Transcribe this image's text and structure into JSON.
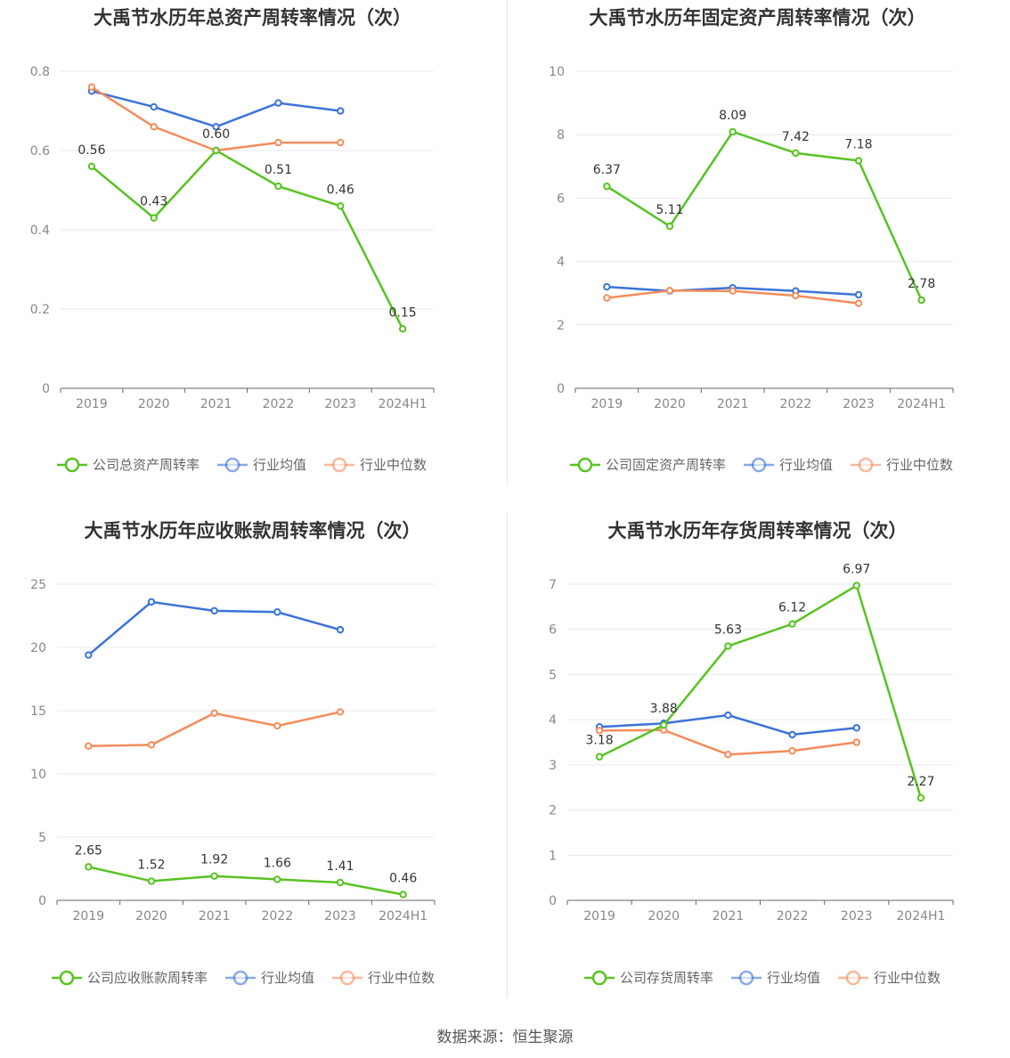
{
  "source": "数据来源：恒生聚源",
  "colors": {
    "company": "#58c322",
    "avg": "#3b73d9",
    "median": "#f48c5c",
    "grid": "#e6e9f2",
    "axis": "#666666"
  },
  "chart_data": [
    {
      "type": "line",
      "title": "大禹节水历年总资产周转率情况（次）",
      "categories": [
        "2019",
        "2020",
        "2021",
        "2022",
        "2023",
        "2024H1"
      ],
      "ylim": [
        0,
        0.8
      ],
      "yticks": [
        "0",
        "0.2",
        "0.4",
        "0.6",
        "0.8"
      ],
      "grid": true,
      "legend": "bottom",
      "series": [
        {
          "name": "公司总资产周转率",
          "key": "company",
          "values": [
            0.56,
            0.43,
            0.6,
            0.51,
            0.46,
            0.15
          ],
          "labels": [
            "0.56",
            "0.43",
            "0.60",
            "0.51",
            "0.46",
            "0.15"
          ]
        },
        {
          "name": "行业均值",
          "key": "avg",
          "values": [
            0.75,
            0.71,
            0.66,
            0.72,
            0.7,
            null
          ]
        },
        {
          "name": "行业中位数",
          "key": "median",
          "values": [
            0.76,
            0.66,
            0.6,
            0.62,
            0.62,
            null
          ]
        }
      ]
    },
    {
      "type": "line",
      "title": "大禹节水历年固定资产周转率情况（次）",
      "categories": [
        "2019",
        "2020",
        "2021",
        "2022",
        "2023",
        "2024H1"
      ],
      "ylim": [
        0,
        10
      ],
      "yticks": [
        "0",
        "2",
        "4",
        "6",
        "8",
        "10"
      ],
      "grid": true,
      "legend": "bottom",
      "series": [
        {
          "name": "公司固定资产周转率",
          "key": "company",
          "values": [
            6.37,
            5.11,
            8.09,
            7.42,
            7.18,
            2.78
          ],
          "labels": [
            "6.37",
            "5.11",
            "8.09",
            "7.42",
            "7.18",
            "2.78"
          ]
        },
        {
          "name": "行业均值",
          "key": "avg",
          "values": [
            3.2,
            3.07,
            3.17,
            3.07,
            2.95,
            null
          ]
        },
        {
          "name": "行业中位数",
          "key": "median",
          "values": [
            2.85,
            3.08,
            3.07,
            2.92,
            2.68,
            null
          ]
        }
      ]
    },
    {
      "type": "line",
      "title": "大禹节水历年应收账款周转率情况（次）",
      "categories": [
        "2019",
        "2020",
        "2021",
        "2022",
        "2023",
        "2024H1"
      ],
      "ylim": [
        0,
        25
      ],
      "yticks": [
        "0",
        "5",
        "10",
        "15",
        "20",
        "25"
      ],
      "grid": true,
      "legend": "bottom",
      "series": [
        {
          "name": "公司应收账款周转率",
          "key": "company",
          "values": [
            2.65,
            1.52,
            1.92,
            1.66,
            1.41,
            0.46
          ],
          "labels": [
            "2.65",
            "1.52",
            "1.92",
            "1.66",
            "1.41",
            "0.46"
          ]
        },
        {
          "name": "行业均值",
          "key": "avg",
          "values": [
            19.4,
            23.6,
            22.9,
            22.8,
            21.4,
            null
          ]
        },
        {
          "name": "行业中位数",
          "key": "median",
          "values": [
            12.2,
            12.3,
            14.8,
            13.8,
            14.9,
            null
          ]
        }
      ]
    },
    {
      "type": "line",
      "title": "大禹节水历年存货周转率情况（次）",
      "categories": [
        "2019",
        "2020",
        "2021",
        "2022",
        "2023",
        "2024H1"
      ],
      "ylim": [
        0,
        7
      ],
      "yticks": [
        "0",
        "1",
        "2",
        "3",
        "4",
        "5",
        "6",
        "7"
      ],
      "grid": true,
      "legend": "bottom",
      "series": [
        {
          "name": "公司存货周转率",
          "key": "company",
          "values": [
            3.18,
            3.88,
            5.63,
            6.12,
            6.97,
            2.27
          ],
          "labels": [
            "3.18",
            "3.88",
            "5.63",
            "6.12",
            "6.97",
            "2.27"
          ]
        },
        {
          "name": "行业均值",
          "key": "avg",
          "values": [
            3.84,
            3.92,
            4.1,
            3.67,
            3.82,
            null
          ]
        },
        {
          "name": "行业中位数",
          "key": "median",
          "values": [
            3.76,
            3.77,
            3.23,
            3.31,
            3.5,
            null
          ]
        }
      ]
    }
  ]
}
